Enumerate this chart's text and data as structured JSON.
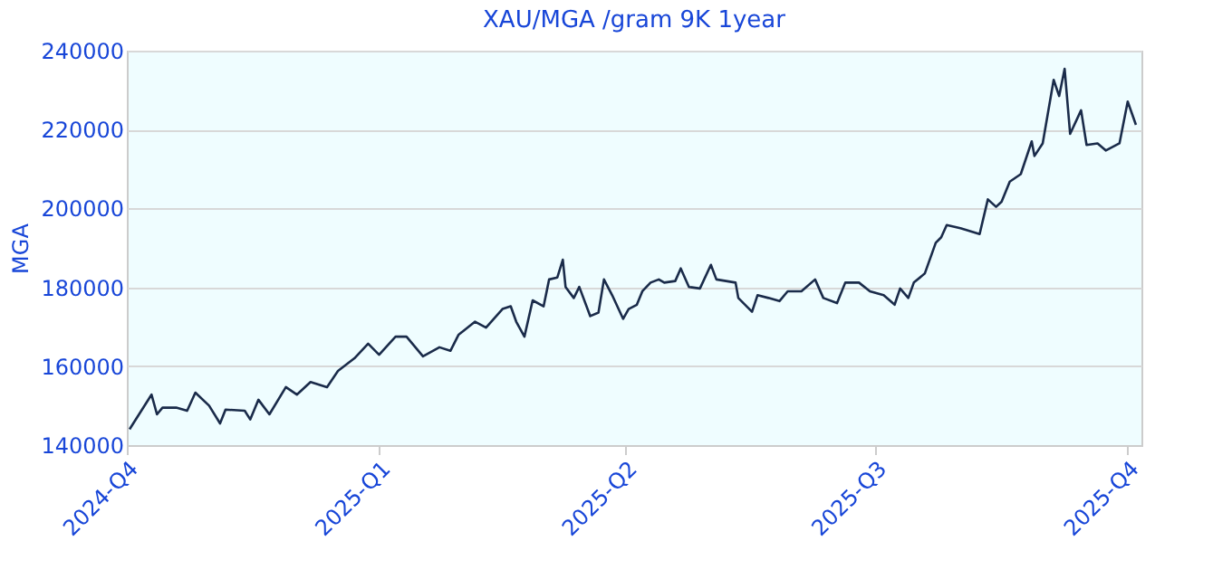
{
  "chart_data": {
    "type": "line",
    "title": "XAU/MGA /gram 9K 1year",
    "ylabel": "MGA",
    "x": [
      "2024-10-02",
      "2024-10-10",
      "2024-10-12",
      "2024-10-14",
      "2024-10-19",
      "2024-10-23",
      "2024-10-26",
      "2024-10-31",
      "2024-11-04",
      "2024-11-06",
      "2024-11-13",
      "2024-11-15",
      "2024-11-18",
      "2024-11-22",
      "2024-11-28",
      "2024-12-02",
      "2024-12-07",
      "2024-12-13",
      "2024-12-17",
      "2024-12-23",
      "2024-12-28",
      "2025-01-01",
      "2025-01-07",
      "2025-01-11",
      "2025-01-17",
      "2025-01-23",
      "2025-01-27",
      "2025-01-30",
      "2025-02-05",
      "2025-02-09",
      "2025-02-15",
      "2025-02-18",
      "2025-02-20",
      "2025-02-23",
      "2025-02-26",
      "2025-03-02",
      "2025-03-04",
      "2025-03-07",
      "2025-03-09",
      "2025-03-10",
      "2025-03-13",
      "2025-03-15",
      "2025-03-19",
      "2025-03-22",
      "2025-03-24",
      "2025-03-27",
      "2025-03-31",
      "2025-04-02",
      "2025-04-05",
      "2025-04-07",
      "2025-04-10",
      "2025-04-13",
      "2025-04-15",
      "2025-04-19",
      "2025-04-21",
      "2025-04-24",
      "2025-04-28",
      "2025-05-02",
      "2025-05-04",
      "2025-05-11",
      "2025-05-12",
      "2025-05-17",
      "2025-05-19",
      "2025-05-23",
      "2025-05-27",
      "2025-05-30",
      "2025-06-04",
      "2025-06-09",
      "2025-06-12",
      "2025-06-17",
      "2025-06-20",
      "2025-06-25",
      "2025-06-29",
      "2025-07-04",
      "2025-07-08",
      "2025-07-10",
      "2025-07-13",
      "2025-07-15",
      "2025-07-19",
      "2025-07-23",
      "2025-07-25",
      "2025-07-27",
      "2025-08-01",
      "2025-08-08",
      "2025-08-11",
      "2025-08-14",
      "2025-08-16",
      "2025-08-19",
      "2025-08-23",
      "2025-08-27",
      "2025-08-28",
      "2025-08-31",
      "2025-09-04",
      "2025-09-06",
      "2025-09-08",
      "2025-09-10",
      "2025-09-14",
      "2025-09-16",
      "2025-09-20",
      "2025-09-23",
      "2025-09-28",
      "2025-10-01",
      "2025-10-04"
    ],
    "series": [
      {
        "color": "#1a2b4a",
        "values": [
          144000,
          152800,
          147800,
          149500,
          149500,
          148700,
          153300,
          150000,
          145500,
          149000,
          148700,
          146500,
          151500,
          147800,
          154700,
          152800,
          156000,
          154700,
          158800,
          162000,
          165700,
          162900,
          167500,
          167500,
          162500,
          164800,
          163900,
          168000,
          171300,
          169800,
          174500,
          175200,
          171300,
          167500,
          176700,
          175200,
          182000,
          182500,
          187000,
          180100,
          177300,
          180100,
          172700,
          173600,
          182000,
          178000,
          172000,
          174500,
          175600,
          179000,
          181200,
          182000,
          181200,
          181600,
          184800,
          180100,
          179700,
          185700,
          182000,
          181200,
          177300,
          173800,
          178000,
          177300,
          176500,
          179000,
          179000,
          182000,
          177300,
          176000,
          181200,
          181200,
          179000,
          178000,
          175600,
          179700,
          177300,
          181200,
          183500,
          191300,
          192700,
          195800,
          195000,
          193500,
          202300,
          200400,
          201700,
          206800,
          208700,
          217000,
          213300,
          216500,
          232600,
          228500,
          235400,
          218900,
          224900,
          216100,
          216500,
          214700,
          216500,
          227100,
          221200
        ]
      }
    ],
    "xlim": [
      "2024-10-01",
      "2025-10-06"
    ],
    "xticks": [
      {
        "value": "2024-10-01",
        "label": "2024-Q4"
      },
      {
        "value": "2025-01-01",
        "label": "2025-Q1"
      },
      {
        "value": "2025-04-01",
        "label": "2025-Q2"
      },
      {
        "value": "2025-07-01",
        "label": "2025-Q3"
      },
      {
        "value": "2025-10-01",
        "label": "2025-Q4"
      }
    ],
    "ylim": [
      140000,
      240000
    ],
    "yticks": [
      140000,
      160000,
      180000,
      200000,
      220000,
      240000
    ],
    "grid": "y",
    "legend": false
  }
}
